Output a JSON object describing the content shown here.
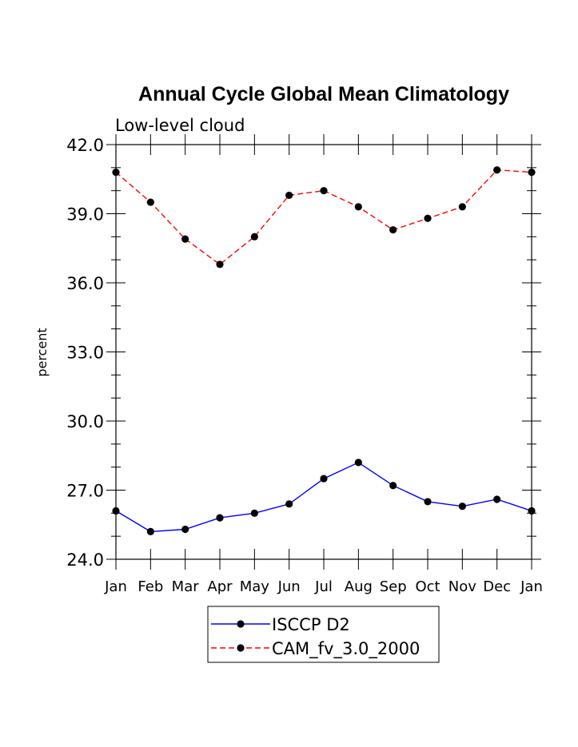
{
  "chart_data": {
    "type": "line",
    "title": "Annual Cycle Global Mean Climatology",
    "subtitle": "Low-level cloud",
    "xlabel": "",
    "ylabel": "percent",
    "categories": [
      "Jan",
      "Feb",
      "Mar",
      "Apr",
      "May",
      "Jun",
      "Jul",
      "Aug",
      "Sep",
      "Oct",
      "Nov",
      "Dec",
      "Jan"
    ],
    "ylim": [
      24.0,
      42.0
    ],
    "yticks": [
      "24.0",
      "27.0",
      "30.0",
      "33.0",
      "36.0",
      "39.0",
      "42.0"
    ],
    "grid": false,
    "legend_position": "bottom",
    "series": [
      {
        "name": "ISCCP D2",
        "color": "#0000ff",
        "line_style": "solid",
        "marker": "filled-circle",
        "values": [
          26.1,
          25.2,
          25.3,
          25.8,
          26.0,
          26.4,
          27.5,
          28.2,
          27.2,
          26.5,
          26.3,
          26.6,
          26.1
        ]
      },
      {
        "name": "CAM_fv_3.0_2000",
        "color": "#ff0000",
        "line_style": "dashed",
        "marker": "filled-circle",
        "values": [
          40.8,
          39.5,
          37.9,
          36.8,
          38.0,
          39.8,
          40.0,
          39.3,
          38.3,
          38.8,
          39.3,
          40.9,
          40.8
        ]
      }
    ]
  }
}
